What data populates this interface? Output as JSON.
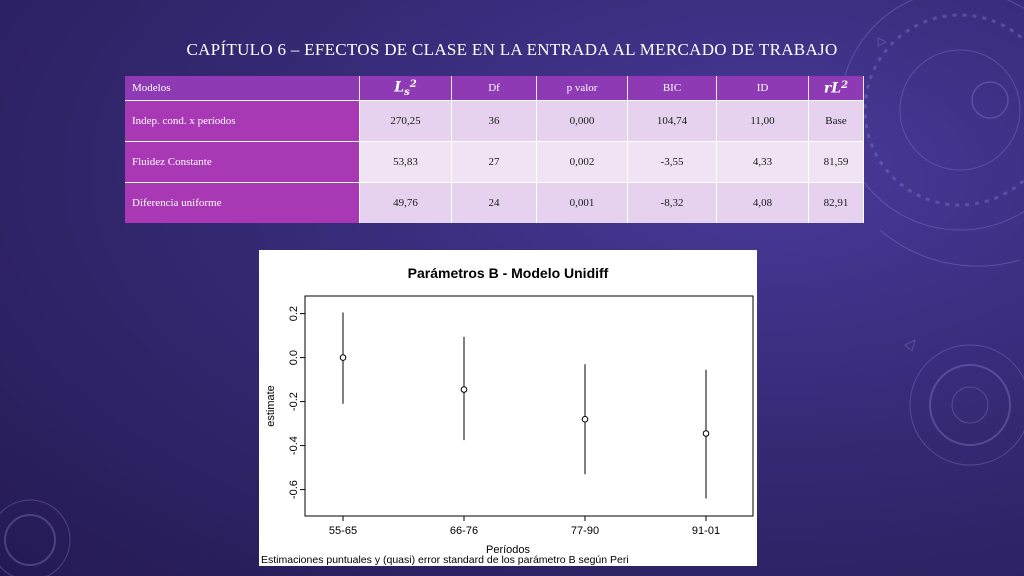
{
  "slide": {
    "title": "CAPÍTULO 6 – EFECTOS DE CLASE EN LA ENTRADA AL MERCADO DE TRABAJO"
  },
  "table": {
    "headers": {
      "modelos": "Modelos",
      "l2_base": "L",
      "l2_sub": "s",
      "l2_sup": "2",
      "df": "Df",
      "pvalor": "p valor",
      "bic": "BIC",
      "id": "ID",
      "rl2_base": "rL",
      "rl2_sup": "2"
    },
    "rows": [
      {
        "modelo": "Indep. cond. x períodos",
        "l2": "270,25",
        "df": "36",
        "p": "0,000",
        "bic": "104,74",
        "id": "11,00",
        "rl2": "Base"
      },
      {
        "modelo": "Fluidez Constante",
        "l2": "53,83",
        "df": "27",
        "p": "0,002",
        "bic": "-3,55",
        "id": "4,33",
        "rl2": "81,59"
      },
      {
        "modelo": "Diferencia uniforme",
        "l2": "49,76",
        "df": "24",
        "p": "0,001",
        "bic": "-8,32",
        "id": "4,08",
        "rl2": "82,91"
      }
    ]
  },
  "chart_data": {
    "type": "scatter",
    "title": "Parámetros B - Modelo Unidiff",
    "xlabel": "Períodos",
    "ylabel": "estimate",
    "caption": "Estimaciones puntuales y (quasi) error standard de los parámetro B según Peri",
    "categories": [
      "55-65",
      "66-76",
      "77-90",
      "91-01"
    ],
    "estimate": [
      0.0,
      -0.145,
      -0.28,
      -0.345
    ],
    "lower": [
      -0.21,
      -0.375,
      -0.53,
      -0.64
    ],
    "upper": [
      0.205,
      0.095,
      -0.03,
      -0.055
    ],
    "ylim": [
      -0.72,
      0.28
    ],
    "yticks": [
      0.2,
      0.0,
      -0.2,
      -0.4,
      -0.6
    ],
    "ytick_labels": [
      "0.2",
      "0.0",
      "-0.2",
      "-0.4",
      "-0.6"
    ],
    "grid": false,
    "marker_color": "#000000"
  }
}
